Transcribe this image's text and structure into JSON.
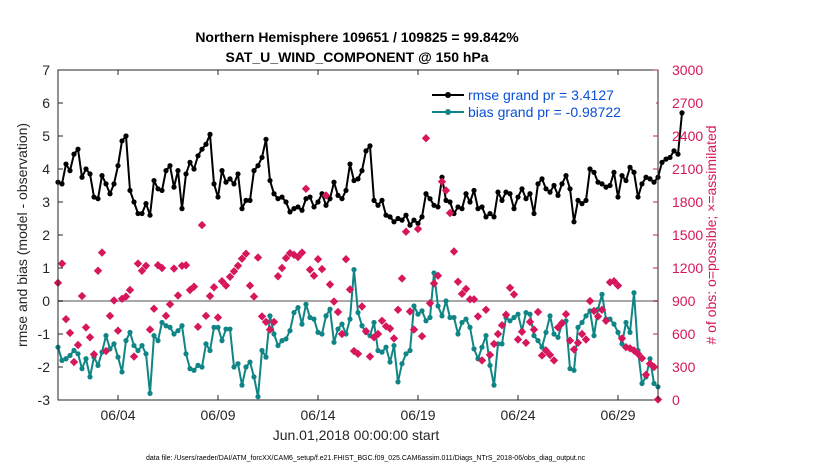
{
  "chart_data": {
    "type": "line",
    "title": "Northern Hemisphere 109651 / 109825 = 99.842%",
    "subtitle": "SAT_U_WIND_COMPONENT @ 150 hPa",
    "xlabel": "Jun.01,2018 00:00:00 start",
    "ylabel": "rmse and bias (model - observation)",
    "y2label": "# of obs: o=possible; ×=assimilated",
    "footer": "data file: /Users/raeder/DAI/ATM_forcXX/CAM6_setup/f.e21.FHIST_BGC.f09_025.CAM6assim.011/Diags_NTrS_2018-06/obs_diag_output.nc",
    "xlim": [
      1.0,
      31.0
    ],
    "ylim": [
      -3,
      7
    ],
    "y2lim": [
      0,
      3000
    ],
    "x_tick_labels": [
      "06/04",
      "06/09",
      "06/14",
      "06/19",
      "06/24",
      "06/29"
    ],
    "x_tick_values": [
      4,
      9,
      14,
      19,
      24,
      29
    ],
    "y_tick_labels": [
      "-3",
      "-2",
      "-1",
      "0",
      "1",
      "2",
      "3",
      "4",
      "5",
      "6",
      "7"
    ],
    "y2_tick_labels": [
      "0",
      "300",
      "600",
      "900",
      "1200",
      "1500",
      "1800",
      "2100",
      "2400",
      "2700",
      "3000"
    ],
    "zero_line": 0,
    "legend": {
      "position": "top-right",
      "entries": [
        {
          "label": "rmse grand pr = 3.4127",
          "color": "#000000",
          "marker": "circle"
        },
        {
          "label": "bias grand pr = -0.98722",
          "color": "#108585",
          "marker": "circle"
        }
      ]
    },
    "series": [
      {
        "name": "rmse",
        "color": "#000000",
        "axis": "left",
        "values": [
          3.6,
          3.55,
          4.15,
          3.95,
          4.45,
          4.6,
          3.75,
          4.0,
          3.85,
          3.15,
          3.1,
          3.8,
          3.55,
          3.25,
          3.55,
          4.1,
          4.85,
          5.0,
          3.35,
          3.0,
          2.65,
          2.65,
          2.95,
          2.6,
          3.65,
          3.4,
          3.35,
          3.95,
          4.1,
          3.45,
          3.95,
          2.8,
          3.85,
          4.2,
          4.0,
          4.4,
          4.6,
          4.75,
          5.05,
          3.55,
          3.15,
          3.95,
          3.6,
          3.7,
          3.55,
          3.85,
          2.8,
          3.05,
          3.05,
          3.95,
          4.1,
          4.35,
          4.9,
          3.65,
          3.25,
          3.1,
          3.15,
          3.0,
          2.7,
          2.8,
          2.85,
          2.75,
          3.1,
          3.15,
          2.85,
          3.0,
          3.25,
          2.9,
          3.1,
          3.6,
          3.2,
          3.1,
          3.35,
          4.15,
          3.65,
          3.7,
          3.95,
          4.55,
          4.7,
          3.05,
          2.9,
          3.05,
          2.6,
          2.55,
          2.4,
          2.5,
          2.45,
          2.6,
          2.3,
          2.45,
          2.35,
          2.55,
          3.25,
          3.1,
          2.9,
          2.85,
          3.75,
          3.05,
          3.0,
          2.65,
          2.85,
          2.8,
          3.25,
          3.0,
          3.35,
          2.8,
          2.85,
          2.55,
          2.65,
          2.55,
          3.3,
          3.05,
          3.3,
          3.25,
          2.8,
          3.15,
          3.4,
          3.1,
          3.25,
          2.65,
          3.55,
          3.7,
          3.4,
          3.3,
          3.5,
          3.2,
          3.55,
          3.8,
          3.4,
          2.4,
          3.05,
          2.95,
          3.05,
          4.0,
          3.9,
          3.6,
          3.55,
          3.45,
          3.5,
          3.9,
          3.15,
          3.8,
          3.65,
          4.05,
          3.9,
          3.15,
          3.55,
          3.75,
          3.7,
          3.6,
          3.75,
          4.2,
          4.3,
          4.35,
          4.55,
          4.45,
          5.7
        ]
      },
      {
        "name": "bias",
        "color": "#108585",
        "axis": "left",
        "values": [
          -1.4,
          -1.8,
          -1.75,
          -1.65,
          -1.5,
          -1.6,
          -2.05,
          -1.75,
          -2.3,
          -1.7,
          -1.95,
          -1.55,
          -1.05,
          -1.45,
          -1.3,
          -1.7,
          -2.15,
          -1.2,
          -0.95,
          -1.35,
          -1.5,
          -1.35,
          -1.6,
          -2.8,
          -1.05,
          -1.2,
          -0.65,
          -0.75,
          -0.8,
          -1.0,
          -0.9,
          -0.75,
          -1.6,
          -2.05,
          -2.1,
          -1.95,
          -2.0,
          -1.3,
          -1.5,
          -0.8,
          -0.8,
          -1.2,
          -0.85,
          -0.85,
          -2.0,
          -1.9,
          -2.55,
          -2.0,
          -1.85,
          -2.3,
          -2.9,
          -1.5,
          -1.7,
          -0.45,
          -1.0,
          -1.35,
          -1.2,
          -1.15,
          -0.9,
          -0.35,
          -0.2,
          -0.7,
          -0.1,
          -0.5,
          -0.55,
          -0.95,
          -1.0,
          -0.45,
          -0.25,
          -1.25,
          -0.85,
          -0.7,
          -1.0,
          -0.55,
          0.95,
          -0.35,
          -0.75,
          -0.95,
          -1.05,
          -0.65,
          -1.5,
          -1.55,
          -1.4,
          -1.85,
          -1.35,
          -2.45,
          -1.9,
          -1.6,
          -1.5,
          -0.15,
          -0.4,
          -0.3,
          -0.6,
          -0.5,
          0.85,
          -0.15,
          -0.45,
          0.0,
          -0.5,
          -0.5,
          -1.0,
          -0.65,
          -0.55,
          -0.8,
          -1.45,
          -1.75,
          -1.4,
          -1.05,
          -1.95,
          -2.55,
          -1.3,
          -1.3,
          -0.5,
          -0.6,
          -0.5,
          -0.4,
          -0.9,
          -0.35,
          -0.4,
          -1.05,
          -1.2,
          -1.4,
          -0.95,
          -0.45,
          -1.0,
          -1.1,
          -0.7,
          -0.6,
          -2.05,
          -2.1,
          -0.8,
          -0.65,
          -0.45,
          -0.3,
          -1.05,
          -0.25,
          0.2,
          -0.55,
          -0.55,
          -0.7,
          -0.95,
          -1.3,
          -0.65,
          -0.95,
          0.25,
          -1.5,
          -2.5,
          -2.3,
          -1.75,
          -2.5,
          -2.6
        ]
      },
      {
        "name": "obs_assimilated",
        "color": "#d6175c",
        "axis": "right",
        "marker": "diamond",
        "values": [
          1065,
          1240,
          735,
          610,
          345,
          500,
          945,
          660,
          570,
          415,
          1175,
          1340,
          445,
          765,
          905,
          630,
          920,
          940,
          1000,
          395,
          1240,
          1175,
          1220,
          640,
          830,
          1225,
          1200,
          765,
          870,
          1195,
          950,
          1220,
          1225,
          1000,
          1030,
          665,
          1590,
          765,
          945,
          1025,
          750,
          1080,
          1040,
          1120,
          1170,
          1220,
          1285,
          1330,
          1040,
          940,
          1295,
          760,
          710,
          640,
          710,
          1125,
          1200,
          1290,
          1335,
          1320,
          1300,
          1340,
          1920,
          1185,
          1130,
          1280,
          1190,
          1860,
          1050,
          895,
          800,
          600,
          1280,
          1005,
          445,
          420,
          850,
          625,
          395,
          570,
          600,
          720,
          670,
          650,
          560,
          820,
          1105,
          1530,
          805,
          640,
          1555,
          580,
          2380,
          880,
          1060,
          1130,
          1985,
          1905,
          1700,
          1350,
          1075,
          965,
          1010,
          915,
          915,
          760,
          360,
          820,
          410,
          510,
          600,
          680,
          775,
          1020,
          960,
          550,
          620,
          520,
          710,
          640,
          800,
          405,
          450,
          410,
          360,
          660,
          700,
          780,
          540,
          460,
          520,
          600,
          550,
          900,
          810,
          760,
          820,
          720,
          1070,
          1080,
          1040,
          560,
          480,
          470,
          450,
          420,
          380,
          230,
          330,
          300,
          5
        ]
      }
    ]
  }
}
